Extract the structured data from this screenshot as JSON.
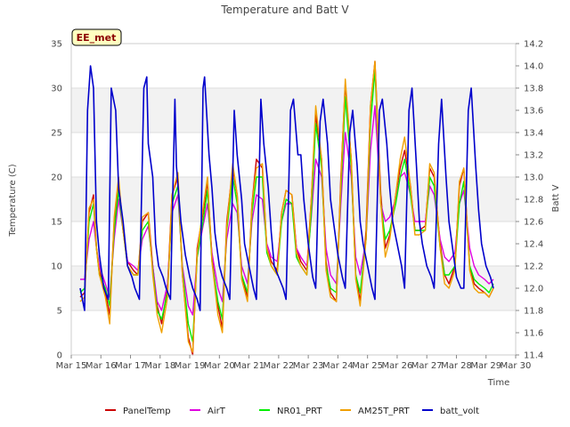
{
  "chart_data": {
    "type": "line",
    "title": "Temperature and Batt V",
    "xlabel": "Time",
    "ylabel": "Temperature (C)",
    "y2label": "Batt V",
    "site_label": "EE_met",
    "x_ticks": [
      "Mar 15",
      "Mar 16",
      "Mar 17",
      "Mar 18",
      "Mar 19",
      "Mar 20",
      "Mar 21",
      "Mar 22",
      "Mar 23",
      "Mar 24",
      "Mar 25",
      "Mar 26",
      "Mar 27",
      "Mar 28",
      "Mar 29",
      "Mar 30"
    ],
    "y_ticks": [
      "0",
      "5",
      "10",
      "15",
      "20",
      "25",
      "30",
      "35"
    ],
    "y2_ticks": [
      "11.4",
      "11.6",
      "11.8",
      "12.0",
      "12.2",
      "12.4",
      "12.6",
      "12.8",
      "13.0",
      "13.2",
      "13.4",
      "13.6",
      "13.8",
      "14.0",
      "14.2"
    ],
    "xlim": [
      15,
      30
    ],
    "ylim": [
      0,
      35
    ],
    "y2lim": [
      11.4,
      14.2
    ],
    "grid": true,
    "legend_position": "bottom",
    "series": [
      {
        "name": "PanelTemp",
        "axis": "left",
        "color": "#cc0000",
        "x": [
          15.3,
          15.45,
          15.6,
          15.75,
          15.85,
          15.95,
          16.15,
          16.3,
          16.45,
          16.6,
          16.75,
          16.9,
          17.1,
          17.25,
          17.4,
          17.6,
          17.75,
          17.9,
          18.05,
          18.25,
          18.4,
          18.6,
          18.75,
          18.95,
          19.1,
          19.25,
          19.45,
          19.6,
          19.75,
          19.95,
          20.1,
          20.25,
          20.45,
          20.6,
          20.75,
          20.95,
          21.1,
          21.25,
          21.45,
          21.6,
          21.75,
          21.95,
          22.1,
          22.25,
          22.45,
          22.6,
          22.75,
          22.95,
          23.1,
          23.25,
          23.45,
          23.6,
          23.75,
          23.95,
          24.1,
          24.25,
          24.45,
          24.6,
          24.75,
          24.95,
          25.1,
          25.25,
          25.45,
          25.6,
          25.75,
          25.95,
          26.1,
          26.25,
          26.45,
          26.6,
          26.75,
          26.95,
          27.1,
          27.25,
          27.45,
          27.6,
          27.75,
          27.95,
          28.1,
          28.25,
          28.45,
          28.6,
          28.75,
          28.95,
          29.1,
          29.25
        ],
        "y": [
          6.5,
          7.0,
          16.0,
          18.0,
          12.0,
          9.5,
          7.0,
          4.5,
          15.0,
          19.0,
          14.0,
          10.5,
          9.5,
          9.0,
          15.0,
          16.0,
          10.0,
          5.5,
          3.5,
          7.5,
          18.0,
          20.0,
          9.0,
          2.0,
          0.0,
          12.0,
          16.0,
          19.5,
          11.0,
          5.5,
          3.0,
          15.0,
          21.0,
          18.0,
          9.0,
          6.5,
          17.0,
          22.0,
          21.0,
          12.0,
          10.5,
          9.5,
          16.0,
          18.5,
          18.0,
          12.0,
          10.5,
          9.5,
          17.5,
          27.0,
          22.0,
          10.5,
          7.0,
          6.0,
          20.0,
          30.5,
          22.0,
          9.0,
          6.0,
          14.0,
          28.0,
          33.0,
          18.0,
          12.0,
          13.5,
          18.0,
          21.0,
          23.0,
          19.0,
          14.0,
          14.0,
          14.5,
          21.0,
          20.0,
          12.5,
          9.0,
          8.0,
          10.0,
          19.0,
          21.0,
          10.0,
          8.0,
          7.5,
          7.0,
          6.5,
          7.5
        ]
      },
      {
        "name": "AirT",
        "axis": "left",
        "color": "#e000e0",
        "x": [
          15.3,
          15.45,
          15.6,
          15.75,
          15.85,
          15.95,
          16.15,
          16.3,
          16.45,
          16.6,
          16.75,
          16.9,
          17.1,
          17.25,
          17.4,
          17.6,
          17.75,
          17.9,
          18.05,
          18.25,
          18.4,
          18.6,
          18.75,
          18.95,
          19.1,
          19.25,
          19.45,
          19.6,
          19.75,
          19.95,
          20.1,
          20.25,
          20.45,
          20.6,
          20.75,
          20.95,
          21.1,
          21.25,
          21.45,
          21.6,
          21.75,
          21.95,
          22.1,
          22.25,
          22.45,
          22.6,
          22.75,
          22.95,
          23.1,
          23.25,
          23.45,
          23.6,
          23.75,
          23.95,
          24.1,
          24.25,
          24.45,
          24.6,
          24.75,
          24.95,
          25.1,
          25.25,
          25.45,
          25.6,
          25.75,
          25.95,
          26.1,
          26.25,
          26.45,
          26.6,
          26.75,
          26.95,
          27.1,
          27.25,
          27.45,
          27.6,
          27.75,
          27.95,
          28.1,
          28.25,
          28.45,
          28.6,
          28.75,
          28.95,
          29.1,
          29.25
        ],
        "y": [
          8.5,
          8.5,
          13.0,
          15.0,
          12.0,
          10.0,
          8.0,
          6.5,
          13.0,
          17.5,
          14.0,
          10.5,
          10.0,
          9.5,
          13.0,
          14.5,
          10.0,
          6.0,
          5.0,
          8.0,
          16.0,
          18.0,
          10.0,
          5.5,
          4.5,
          11.0,
          14.5,
          17.0,
          11.5,
          7.5,
          6.0,
          13.0,
          17.0,
          16.0,
          10.0,
          8.0,
          15.0,
          18.0,
          17.5,
          12.5,
          11.0,
          10.5,
          15.0,
          17.0,
          17.0,
          12.0,
          11.0,
          10.0,
          15.5,
          22.0,
          20.0,
          12.0,
          9.0,
          8.0,
          17.0,
          25.0,
          20.0,
          11.0,
          9.0,
          13.0,
          23.0,
          28.0,
          17.0,
          15.0,
          15.5,
          17.5,
          20.0,
          20.5,
          18.0,
          15.0,
          15.0,
          15.0,
          19.0,
          18.0,
          13.0,
          11.0,
          10.5,
          11.5,
          17.0,
          18.5,
          12.0,
          10.0,
          9.0,
          8.5,
          8.0,
          8.5
        ]
      },
      {
        "name": "NR01_PRT",
        "axis": "left",
        "color": "#00ee00",
        "x": [
          15.3,
          15.45,
          15.6,
          15.75,
          15.85,
          15.95,
          16.15,
          16.3,
          16.45,
          16.6,
          16.75,
          16.9,
          17.1,
          17.25,
          17.4,
          17.6,
          17.75,
          17.9,
          18.05,
          18.25,
          18.4,
          18.6,
          18.75,
          18.95,
          19.1,
          19.25,
          19.45,
          19.6,
          19.75,
          19.95,
          20.1,
          20.25,
          20.45,
          20.6,
          20.75,
          20.95,
          21.1,
          21.25,
          21.45,
          21.6,
          21.75,
          21.95,
          22.1,
          22.25,
          22.45,
          22.6,
          22.75,
          22.95,
          23.1,
          23.25,
          23.45,
          23.6,
          23.75,
          23.95,
          24.1,
          24.25,
          24.45,
          24.6,
          24.75,
          24.95,
          25.1,
          25.25,
          25.45,
          25.6,
          25.75,
          25.95,
          26.1,
          26.25,
          26.45,
          26.6,
          26.75,
          26.95,
          27.1,
          27.25,
          27.45,
          27.6,
          27.75,
          27.95,
          28.1,
          28.25,
          28.45,
          28.6,
          28.75,
          28.95,
          29.1,
          29.25
        ],
        "y": [
          7.0,
          7.5,
          15.0,
          17.0,
          12.0,
          9.0,
          7.5,
          5.5,
          14.0,
          18.5,
          14.0,
          10.0,
          9.0,
          9.0,
          14.0,
          15.0,
          9.5,
          5.0,
          4.0,
          7.0,
          17.0,
          19.0,
          9.5,
          3.5,
          1.5,
          11.0,
          15.0,
          18.5,
          10.5,
          6.0,
          4.0,
          14.0,
          20.0,
          17.0,
          9.0,
          7.0,
          16.0,
          20.0,
          20.0,
          11.5,
          10.0,
          9.0,
          15.0,
          17.5,
          17.0,
          11.0,
          10.0,
          9.0,
          16.0,
          26.0,
          21.0,
          10.0,
          7.5,
          7.0,
          18.5,
          29.0,
          21.0,
          9.0,
          7.0,
          13.0,
          26.0,
          32.0,
          17.0,
          13.0,
          14.0,
          17.0,
          20.0,
          22.0,
          18.0,
          14.0,
          14.0,
          14.0,
          20.0,
          19.0,
          12.0,
          9.0,
          9.0,
          10.0,
          17.0,
          19.5,
          10.0,
          8.5,
          8.0,
          7.5,
          7.0,
          8.0
        ]
      },
      {
        "name": "AM25T_PRT",
        "axis": "left",
        "color": "#f0a000",
        "x": [
          15.3,
          15.45,
          15.6,
          15.75,
          15.85,
          15.95,
          16.15,
          16.3,
          16.45,
          16.6,
          16.75,
          16.9,
          17.1,
          17.25,
          17.4,
          17.6,
          17.75,
          17.9,
          18.05,
          18.25,
          18.4,
          18.6,
          18.75,
          18.95,
          19.1,
          19.25,
          19.45,
          19.6,
          19.75,
          19.95,
          20.1,
          20.25,
          20.45,
          20.6,
          20.75,
          20.95,
          21.1,
          21.25,
          21.45,
          21.6,
          21.75,
          21.95,
          22.1,
          22.25,
          22.45,
          22.6,
          22.75,
          22.95,
          23.1,
          23.25,
          23.45,
          23.6,
          23.75,
          23.95,
          24.1,
          24.25,
          24.45,
          24.6,
          24.75,
          24.95,
          25.1,
          25.25,
          25.45,
          25.6,
          25.75,
          25.95,
          26.1,
          26.25,
          26.45,
          26.6,
          26.75,
          26.95,
          27.1,
          27.25,
          27.45,
          27.6,
          27.75,
          27.95,
          28.1,
          28.25,
          28.45,
          28.6,
          28.75,
          28.95,
          29.1,
          29.25
        ],
        "y": [
          6.0,
          6.5,
          16.5,
          17.5,
          12.0,
          9.0,
          6.5,
          3.5,
          15.5,
          20.0,
          14.0,
          10.0,
          9.0,
          9.0,
          15.5,
          16.0,
          9.0,
          4.5,
          2.5,
          6.5,
          18.0,
          20.5,
          9.0,
          1.5,
          0.3,
          11.5,
          16.5,
          20.0,
          10.5,
          4.5,
          2.5,
          14.5,
          21.5,
          18.0,
          8.5,
          6.0,
          17.0,
          21.0,
          21.5,
          12.0,
          10.0,
          9.0,
          16.0,
          18.5,
          18.0,
          11.5,
          10.0,
          9.0,
          17.5,
          28.0,
          22.0,
          9.5,
          6.5,
          6.0,
          19.5,
          31.0,
          22.0,
          8.5,
          5.5,
          13.0,
          28.0,
          33.0,
          17.0,
          11.0,
          13.0,
          18.0,
          22.0,
          24.5,
          19.0,
          13.5,
          13.5,
          14.0,
          21.5,
          20.5,
          12.0,
          8.0,
          7.5,
          9.5,
          19.5,
          21.0,
          9.5,
          7.5,
          7.0,
          7.0,
          6.5,
          7.5
        ]
      },
      {
        "name": "batt_volt",
        "axis": "right",
        "color": "#0000cc",
        "x": [
          15.3,
          15.45,
          15.55,
          15.65,
          15.75,
          15.85,
          15.95,
          16.1,
          16.25,
          16.35,
          16.5,
          16.6,
          16.75,
          16.9,
          17.05,
          17.15,
          17.3,
          17.45,
          17.55,
          17.6,
          17.75,
          17.85,
          17.95,
          18.1,
          18.2,
          18.35,
          18.5,
          18.55,
          18.7,
          18.85,
          19.0,
          19.1,
          19.25,
          19.35,
          19.45,
          19.5,
          19.65,
          19.75,
          19.85,
          20.0,
          20.1,
          20.25,
          20.35,
          20.5,
          20.6,
          20.75,
          20.85,
          21.0,
          21.15,
          21.25,
          21.4,
          21.5,
          21.65,
          21.75,
          21.85,
          22.0,
          22.15,
          22.25,
          22.4,
          22.5,
          22.65,
          22.75,
          22.85,
          23.0,
          23.15,
          23.25,
          23.4,
          23.5,
          23.65,
          23.75,
          23.85,
          24.0,
          24.15,
          24.25,
          24.4,
          24.5,
          24.65,
          24.75,
          24.85,
          25.0,
          25.15,
          25.25,
          25.4,
          25.5,
          25.65,
          25.75,
          25.85,
          26.0,
          26.15,
          26.25,
          26.4,
          26.5,
          26.65,
          26.75,
          26.85,
          27.0,
          27.15,
          27.25,
          27.4,
          27.5,
          27.65,
          27.75,
          27.85,
          28.0,
          28.15,
          28.25,
          28.4,
          28.5,
          28.65,
          28.75,
          28.85,
          29.0,
          29.15,
          29.25
        ],
        "y": [
          12.0,
          11.8,
          13.6,
          14.0,
          13.8,
          12.6,
          12.3,
          12.0,
          11.9,
          13.8,
          13.6,
          12.9,
          12.6,
          12.2,
          12.1,
          12.0,
          11.9,
          13.8,
          13.9,
          13.3,
          13.0,
          12.4,
          12.2,
          12.1,
          12.0,
          11.9,
          13.7,
          13.1,
          12.6,
          12.3,
          12.1,
          12.0,
          11.9,
          11.8,
          13.8,
          13.9,
          13.2,
          12.9,
          12.5,
          12.2,
          12.1,
          12.0,
          11.9,
          13.6,
          13.2,
          12.8,
          12.4,
          12.2,
          12.0,
          11.9,
          13.7,
          13.3,
          12.9,
          12.5,
          12.2,
          12.1,
          12.0,
          11.9,
          13.6,
          13.7,
          13.2,
          13.2,
          12.8,
          12.4,
          12.1,
          12.0,
          13.5,
          13.7,
          13.3,
          12.8,
          12.6,
          12.3,
          12.1,
          12.0,
          13.4,
          13.6,
          13.1,
          12.6,
          12.4,
          12.2,
          12.0,
          11.9,
          13.6,
          13.7,
          13.3,
          12.9,
          12.6,
          12.4,
          12.2,
          12.0,
          13.6,
          13.8,
          13.1,
          12.6,
          12.4,
          12.2,
          12.1,
          12.0,
          13.3,
          13.7,
          13.0,
          12.6,
          12.4,
          12.1,
          12.0,
          12.0,
          13.6,
          13.8,
          13.1,
          12.7,
          12.4,
          12.2,
          12.1,
          12.0
        ]
      }
    ]
  }
}
